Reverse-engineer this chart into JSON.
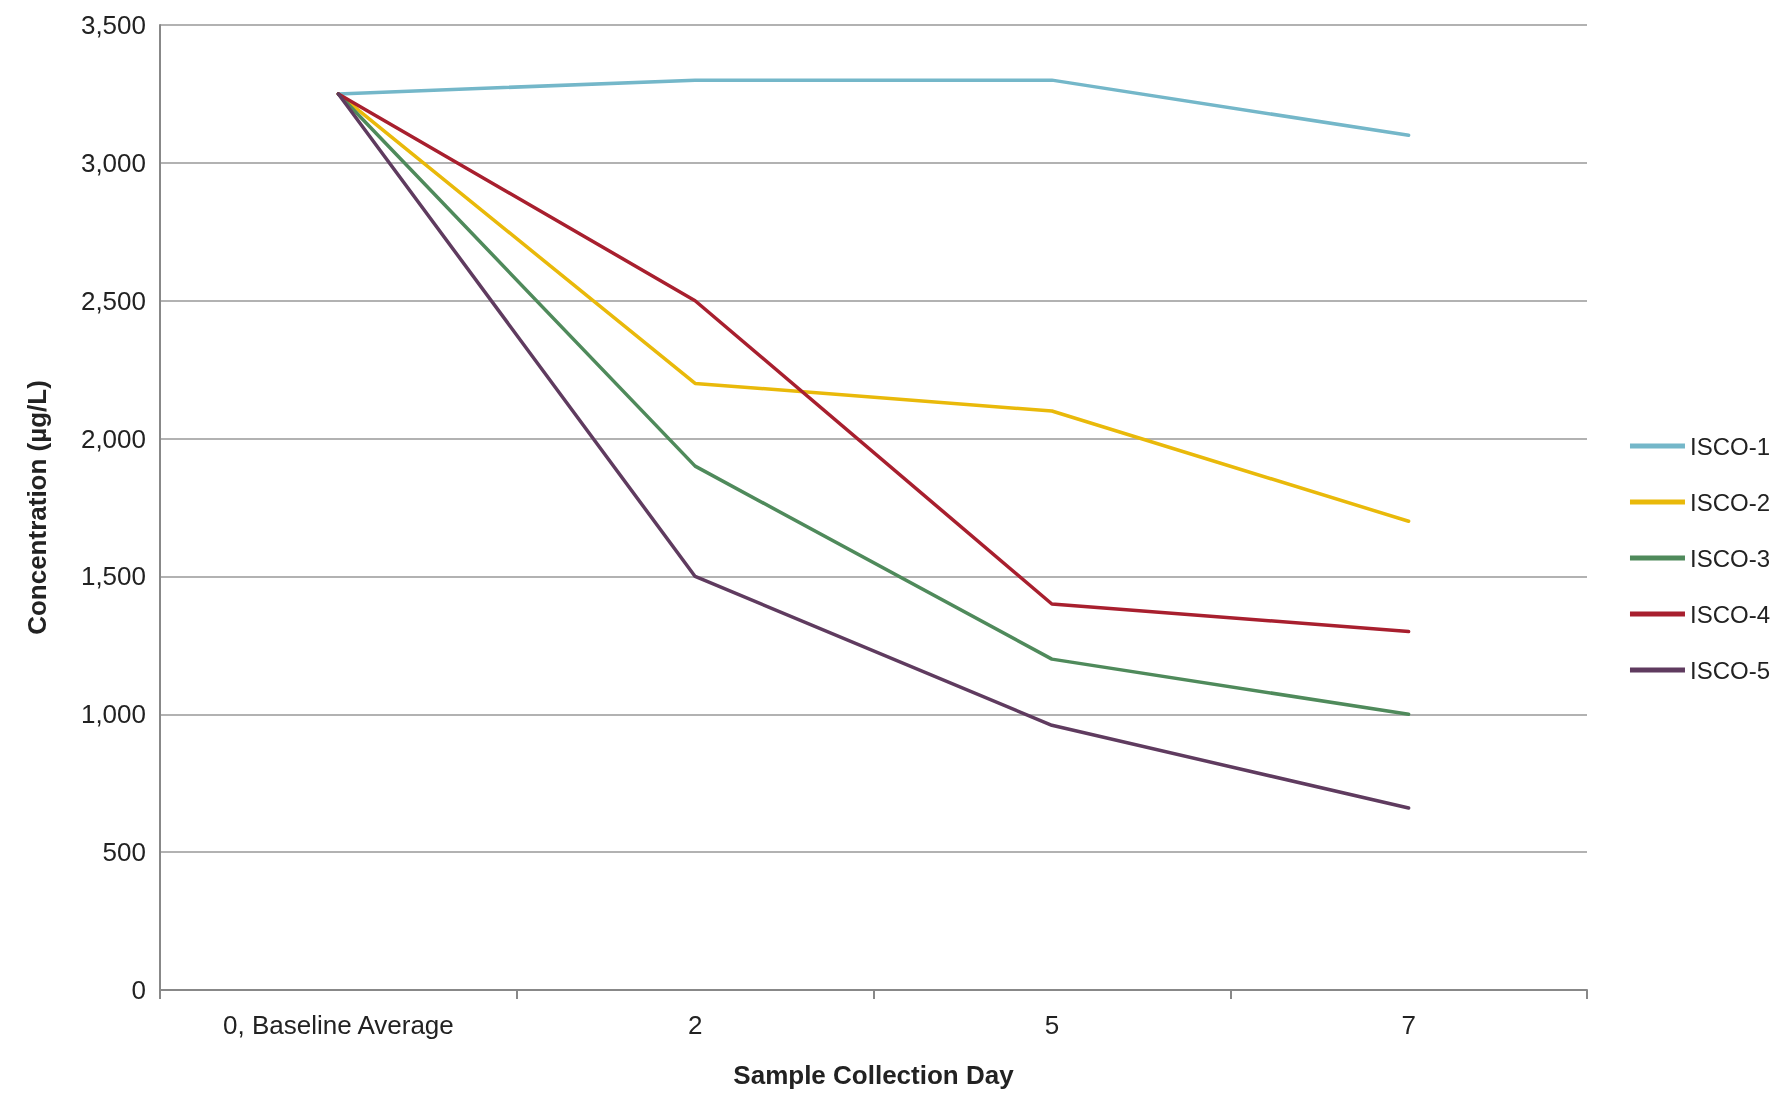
{
  "chart_data": {
    "type": "line",
    "xlabel": "Sample Collection Day",
    "ylabel": "Concentration (µg/L)",
    "categories": [
      "0, Baseline Average",
      "2",
      "5",
      "7"
    ],
    "series": [
      {
        "name": "ISCO-1",
        "color": "#74b7c9",
        "values": [
          3250,
          3300,
          3300,
          3100
        ]
      },
      {
        "name": "ISCO-2",
        "color": "#e9b90a",
        "values": [
          3250,
          2200,
          2100,
          1700
        ]
      },
      {
        "name": "ISCO-3",
        "color": "#4f8a5b",
        "values": [
          3250,
          1900,
          1200,
          1000
        ]
      },
      {
        "name": "ISCO-4",
        "color": "#a81f2e",
        "values": [
          3250,
          2500,
          1400,
          1300
        ]
      },
      {
        "name": "ISCO-5",
        "color": "#5f3b5f",
        "values": [
          3250,
          1500,
          960,
          660
        ]
      }
    ],
    "ylim": [
      0,
      3500
    ],
    "yticks": [
      0,
      500,
      {
        "value": 1000,
        "label": "1,000"
      },
      {
        "value": 1500,
        "label": "1,500"
      },
      {
        "value": 2000,
        "label": "2,000"
      },
      {
        "value": 2500,
        "label": "2,500"
      },
      {
        "value": 3000,
        "label": "3,000"
      },
      {
        "value": 3500,
        "label": "3,500"
      }
    ],
    "grid": "y",
    "legend": "right",
    "marker": "none",
    "line_style": "solid"
  }
}
